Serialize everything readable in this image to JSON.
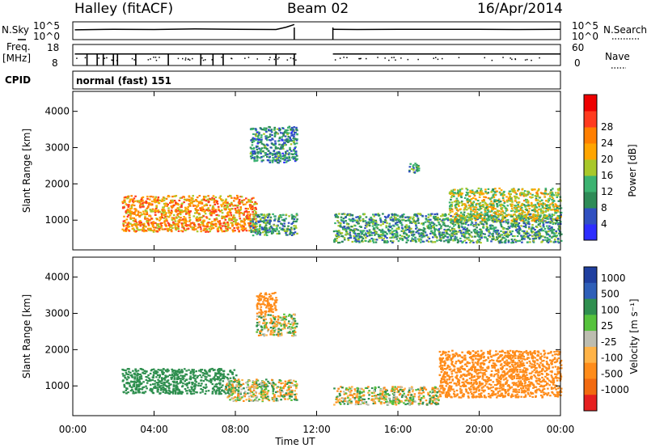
{
  "header": {
    "station": "Halley (fitACF)",
    "beam": "Beam 02",
    "date": "16/Apr/2014"
  },
  "side_labels": {
    "nsky": "N.Sky",
    "nsearch": "N.Search",
    "freq_line1": "Freq.",
    "freq_line2": "[MHz]",
    "nave": "Nave",
    "cpid": "CPID"
  },
  "cpid_text": "normal (fast) 151",
  "colors": {
    "noise_line": "#000000",
    "power_scale": [
      "#2d2dff",
      "#3050c0",
      "#2e8b57",
      "#3cb371",
      "#a8c82a",
      "#ffa500",
      "#ff7f00",
      "#ff3b1f",
      "#ee0000"
    ],
    "velocity_scale": [
      "#1f3f9f",
      "#2e5fb8",
      "#2f8f4f",
      "#56c23c",
      "#bdbdb0",
      "#ffb347",
      "#ff8c1a",
      "#f26a10",
      "#e62020"
    ]
  },
  "chart_data": [
    {
      "type": "line",
      "panel": "N.Sky / N.Search noise",
      "left_axis_ticks": [
        "10^5",
        "10^0"
      ],
      "right_axis_ticks": [
        "10^5",
        "10^0"
      ],
      "x_range_hours": [
        0,
        24
      ],
      "data_gap_hours": [
        11.0,
        12.8
      ],
      "series": [
        {
          "x_hours": [
            0.1,
            2,
            4,
            6,
            8,
            10,
            10.5,
            10.9
          ],
          "level_rel": [
            0.45,
            0.42,
            0.43,
            0.4,
            0.42,
            0.43,
            0.3,
            0.15
          ]
        },
        {
          "x_hours": [
            12.8,
            14,
            16,
            18,
            20,
            22,
            24
          ],
          "level_rel": [
            0.42,
            0.43,
            0.42,
            0.42,
            0.42,
            0.43,
            0.42
          ]
        }
      ]
    },
    {
      "type": "line",
      "panel": "Frequency / Nave",
      "left_axis_ticks": [
        "18",
        "8"
      ],
      "right_axis_ticks": [
        "60",
        "0"
      ],
      "x_range_hours": [
        0,
        24
      ],
      "data_gap_hours": [
        11.0,
        12.8
      ],
      "series": [
        {
          "x_hours": [
            0.1,
            11.0
          ],
          "level_rel": [
            0.45,
            0.45
          ]
        },
        {
          "x_hours": [
            12.8,
            24
          ],
          "level_rel": [
            0.45,
            0.45
          ]
        }
      ],
      "dips_hours": [
        0.7,
        1.2,
        1.5,
        2.0,
        2.2,
        3.1,
        4.7,
        6.3,
        6.9,
        7.4,
        10.0,
        10.9
      ]
    },
    {
      "type": "heatmap",
      "panel": "Power",
      "title": "",
      "ylabel": "Slant Range [km]",
      "colorbar_label": "Power [dB]",
      "colorbar_ticks": [
        4,
        8,
        12,
        16,
        20,
        24,
        28
      ],
      "ylim": [
        180,
        4550
      ],
      "y_ticks": [
        1000,
        2000,
        3000,
        4000
      ],
      "xlim_hours": [
        0,
        24
      ],
      "echo_regions": [
        {
          "t": [
            2.4,
            9.0
          ],
          "r": [
            700,
            1700
          ],
          "power_db": 24
        },
        {
          "t": [
            8.7,
            11.0
          ],
          "r": [
            2600,
            3600
          ],
          "power_db": 10
        },
        {
          "t": [
            8.7,
            11.0
          ],
          "r": [
            600,
            1200
          ],
          "power_db": 12
        },
        {
          "t": [
            12.8,
            24.0
          ],
          "r": [
            400,
            1200
          ],
          "power_db": 12
        },
        {
          "t": [
            18.5,
            24.0
          ],
          "r": [
            1000,
            1900
          ],
          "power_db": 18
        },
        {
          "t": [
            16.5,
            17.0
          ],
          "r": [
            2300,
            2600
          ],
          "power_db": 12
        }
      ]
    },
    {
      "type": "heatmap",
      "panel": "Velocity",
      "title": "",
      "ylabel": "Slant Range [km]",
      "xlabel": "Time UT",
      "colorbar_label": "Velocity [m s⁻¹]",
      "colorbar_ticks": [
        1000,
        500,
        100,
        25,
        -25,
        -100,
        -500,
        -1000
      ],
      "ylim": [
        180,
        4550
      ],
      "y_ticks": [
        1000,
        2000,
        3000,
        4000
      ],
      "x_ticks": [
        "00:00",
        "04:00",
        "08:00",
        "12:00",
        "16:00",
        "20:00",
        "00:00"
      ],
      "x_tick_hours": [
        0,
        4,
        8,
        12,
        16,
        20,
        24
      ],
      "xlim_hours": [
        0,
        24
      ],
      "echo_regions": [
        {
          "t": [
            2.4,
            8.0
          ],
          "r": [
            800,
            1500
          ],
          "velocity": 300
        },
        {
          "t": [
            7.5,
            11.0
          ],
          "r": [
            600,
            1200
          ],
          "velocity": 0
        },
        {
          "t": [
            9.0,
            11.0
          ],
          "r": [
            2400,
            3000
          ],
          "velocity": 0
        },
        {
          "t": [
            9.0,
            10.0
          ],
          "r": [
            3000,
            3600
          ],
          "velocity": -300
        },
        {
          "t": [
            12.8,
            18.0
          ],
          "r": [
            500,
            1000
          ],
          "velocity": 0
        },
        {
          "t": [
            18.0,
            24.0
          ],
          "r": [
            700,
            2000
          ],
          "velocity": -300
        }
      ]
    }
  ]
}
